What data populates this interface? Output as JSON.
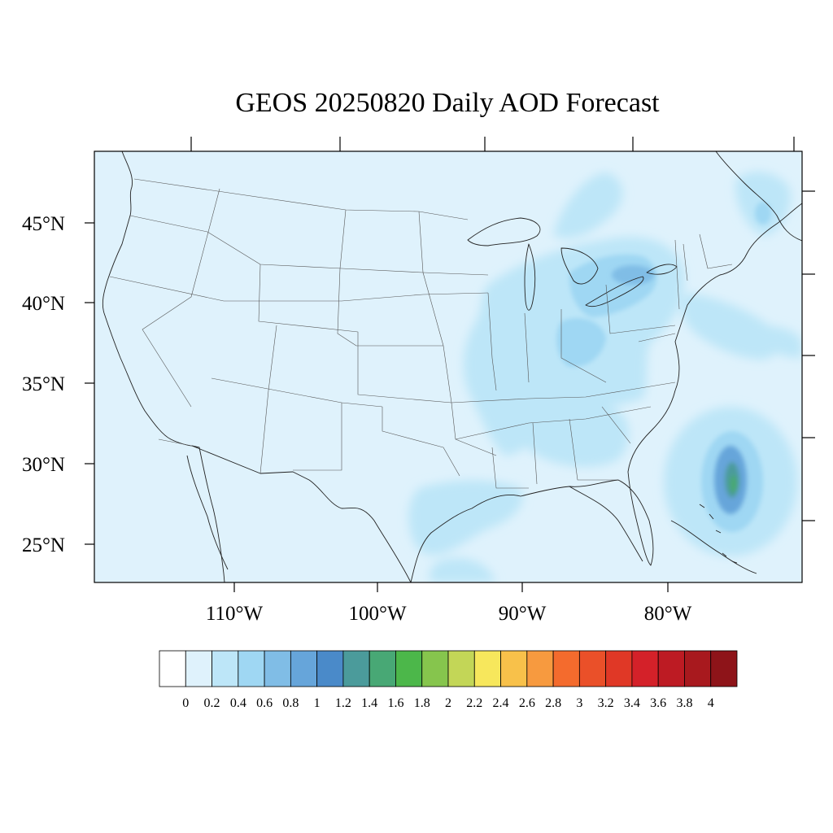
{
  "title": "GEOS 20250820 Daily AOD Forecast",
  "map": {
    "region": "Contiguous United States",
    "background_aod_color": "#dff2fc",
    "lat_labels": [
      "45°N",
      "40°N",
      "35°N",
      "30°N",
      "25°N"
    ],
    "lon_labels": [
      "110°W",
      "100°W",
      "90°W",
      "80°W"
    ]
  },
  "colorbar": {
    "levels": [
      "0",
      "0.2",
      "0.4",
      "0.6",
      "0.8",
      "1",
      "1.2",
      "1.4",
      "1.6",
      "1.8",
      "2",
      "2.2",
      "2.4",
      "2.6",
      "2.8",
      "3",
      "3.2",
      "3.4",
      "3.6",
      "3.8",
      "4"
    ],
    "colors": [
      "#ffffff",
      "#dff2fc",
      "#bde6f8",
      "#9fd7f3",
      "#80bde6",
      "#66a5da",
      "#4a8ac9",
      "#4b9b9b",
      "#48a875",
      "#4cb74a",
      "#86c54d",
      "#c3d657",
      "#f7e75c",
      "#f8c14a",
      "#f79a3f",
      "#f46b2d",
      "#ea5029",
      "#e03826",
      "#d42129",
      "#bd1b23",
      "#a8191e",
      "#8e1419"
    ]
  }
}
